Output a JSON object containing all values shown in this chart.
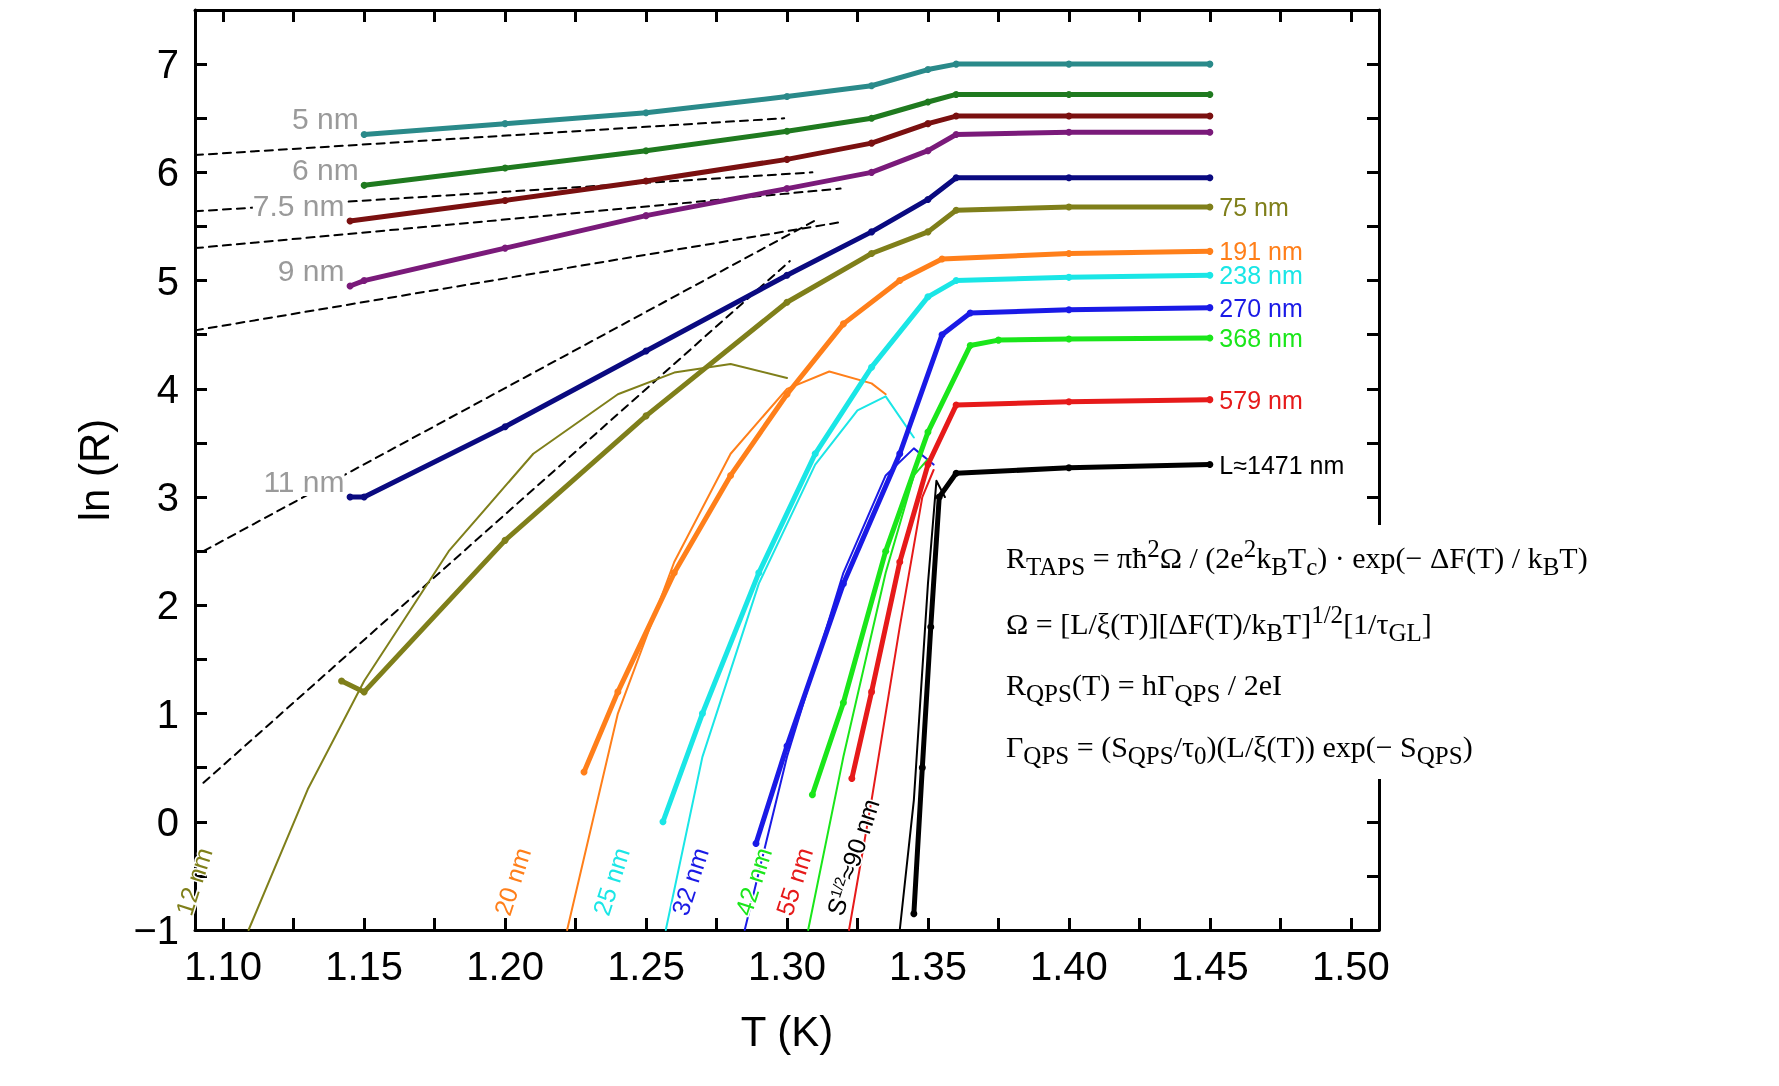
{
  "chart_data": {
    "type": "line",
    "xlabel": "T (K)",
    "ylabel": "ln (R)",
    "xlim": [
      1.09,
      1.51
    ],
    "ylim": [
      -1,
      7.5
    ],
    "xticks": [
      {
        "value": 1.1,
        "label": "1.10"
      },
      {
        "value": 1.125,
        "label": null
      },
      {
        "value": 1.15,
        "label": "1.15"
      },
      {
        "value": 1.175,
        "label": null
      },
      {
        "value": 1.2,
        "label": "1.20"
      },
      {
        "value": 1.225,
        "label": null
      },
      {
        "value": 1.25,
        "label": "1.25"
      },
      {
        "value": 1.275,
        "label": null
      },
      {
        "value": 1.3,
        "label": "1.30"
      },
      {
        "value": 1.325,
        "label": null
      },
      {
        "value": 1.35,
        "label": "1.35"
      },
      {
        "value": 1.375,
        "label": null
      },
      {
        "value": 1.4,
        "label": "1.40"
      },
      {
        "value": 1.425,
        "label": null
      },
      {
        "value": 1.45,
        "label": "1.45"
      },
      {
        "value": 1.475,
        "label": null
      },
      {
        "value": 1.5,
        "label": "1.50"
      }
    ],
    "yticks": [
      {
        "value": -1,
        "label": "−1"
      },
      {
        "value": -0.5,
        "label": null
      },
      0,
      {
        "value": 0.5,
        "label": null
      },
      1,
      {
        "value": 1.5,
        "label": null
      },
      2,
      {
        "value": 2.5,
        "label": null
      },
      3,
      {
        "value": 3.5,
        "label": null
      },
      4,
      {
        "value": 4.5,
        "label": null
      },
      5,
      {
        "value": 5.5,
        "label": null
      },
      6,
      {
        "value": 6.5,
        "label": null
      },
      7
    ],
    "grid": false,
    "legend": false,
    "line_style": "solid",
    "series": [
      {
        "name": "5 nm",
        "color": "#2a8a8a",
        "marker": "circle",
        "x": [
          1.15,
          1.2,
          1.25,
          1.3,
          1.33,
          1.35,
          1.36,
          1.4,
          1.45
        ],
        "values": [
          6.35,
          6.45,
          6.55,
          6.7,
          6.8,
          6.95,
          7.0,
          7.0,
          7.0
        ]
      },
      {
        "name": "6 nm",
        "color": "#1f7a1f",
        "marker": "circle",
        "x": [
          1.15,
          1.2,
          1.25,
          1.3,
          1.33,
          1.35,
          1.36,
          1.4,
          1.45
        ],
        "values": [
          5.88,
          6.04,
          6.2,
          6.38,
          6.5,
          6.65,
          6.72,
          6.72,
          6.72
        ]
      },
      {
        "name": "7.5 nm",
        "color": "#7a1010",
        "marker": "circle",
        "x": [
          1.145,
          1.2,
          1.25,
          1.3,
          1.33,
          1.35,
          1.36,
          1.4,
          1.45
        ],
        "values": [
          5.55,
          5.74,
          5.92,
          6.12,
          6.27,
          6.45,
          6.52,
          6.52,
          6.52
        ]
      },
      {
        "name": "9 nm",
        "color": "#7a1a7a",
        "marker": "circle",
        "x": [
          1.145,
          1.15,
          1.2,
          1.25,
          1.3,
          1.33,
          1.35,
          1.36,
          1.4,
          1.45
        ],
        "values": [
          4.95,
          5.0,
          5.3,
          5.6,
          5.85,
          6.0,
          6.2,
          6.35,
          6.37,
          6.37
        ]
      },
      {
        "name": "11 nm",
        "color": "#0a0a80",
        "marker": "circle",
        "x": [
          1.145,
          1.15,
          1.2,
          1.25,
          1.3,
          1.33,
          1.35,
          1.36,
          1.4,
          1.45
        ],
        "values": [
          3.0,
          3.0,
          3.65,
          4.35,
          5.05,
          5.45,
          5.75,
          5.95,
          5.95,
          5.95
        ]
      },
      {
        "name": "75 nm",
        "color": "#7f7f1a",
        "marker": "circle",
        "x": [
          1.142,
          1.15,
          1.2,
          1.25,
          1.3,
          1.33,
          1.35,
          1.36,
          1.4,
          1.45
        ],
        "values": [
          1.3,
          1.2,
          2.6,
          3.75,
          4.8,
          5.25,
          5.45,
          5.65,
          5.68,
          5.68
        ]
      },
      {
        "name": "191 nm",
        "color": "#ff7f1a",
        "marker": "circle",
        "x": [
          1.228,
          1.24,
          1.26,
          1.28,
          1.3,
          1.32,
          1.34,
          1.355,
          1.4,
          1.45
        ],
        "values": [
          0.46,
          1.2,
          2.3,
          3.2,
          3.95,
          4.6,
          5.0,
          5.2,
          5.25,
          5.27
        ]
      },
      {
        "name": "238 nm",
        "color": "#1ae6e6",
        "marker": "circle",
        "x": [
          1.256,
          1.27,
          1.29,
          1.31,
          1.33,
          1.35,
          1.36,
          1.4,
          1.45
        ],
        "values": [
          0.0,
          1.0,
          2.3,
          3.4,
          4.2,
          4.85,
          5.0,
          5.03,
          5.05
        ]
      },
      {
        "name": "270 nm",
        "color": "#1a1ae6",
        "marker": "circle",
        "x": [
          1.289,
          1.3,
          1.32,
          1.34,
          1.355,
          1.365,
          1.4,
          1.45
        ],
        "values": [
          -0.2,
          0.7,
          2.2,
          3.4,
          4.5,
          4.7,
          4.73,
          4.75
        ]
      },
      {
        "name": "368 nm",
        "color": "#1ae61a",
        "marker": "circle",
        "x": [
          1.309,
          1.32,
          1.335,
          1.35,
          1.365,
          1.375,
          1.4,
          1.45
        ],
        "values": [
          0.25,
          1.1,
          2.5,
          3.6,
          4.4,
          4.45,
          4.46,
          4.47
        ]
      },
      {
        "name": "579 nm",
        "color": "#e61a1a",
        "marker": "circle",
        "x": [
          1.323,
          1.33,
          1.34,
          1.35,
          1.36,
          1.4,
          1.45
        ],
        "values": [
          0.4,
          1.2,
          2.4,
          3.3,
          3.85,
          3.88,
          3.9
        ]
      },
      {
        "name": "L≈1471 nm",
        "color": "#000000",
        "marker": "circle",
        "x": [
          1.345,
          1.348,
          1.351,
          1.354,
          1.36,
          1.4,
          1.45
        ],
        "values": [
          -0.85,
          0.5,
          1.8,
          3.0,
          3.22,
          3.27,
          3.3
        ]
      },
      {
        "name": "12 nm",
        "color": "#7f7f1a",
        "marker": "none",
        "x": [
          1.109,
          1.13,
          1.15,
          1.18,
          1.21,
          1.24,
          1.26,
          1.28,
          1.3
        ],
        "values": [
          -1,
          0.3,
          1.3,
          2.5,
          3.4,
          3.95,
          4.15,
          4.23,
          4.1
        ]
      },
      {
        "name": "20 nm",
        "color": "#ff7f1a",
        "marker": "none",
        "x": [
          1.222,
          1.24,
          1.26,
          1.28,
          1.3,
          1.315,
          1.33,
          1.335
        ],
        "values": [
          -1,
          1.0,
          2.4,
          3.4,
          4.0,
          4.16,
          4.05,
          3.95
        ]
      },
      {
        "name": "25 nm",
        "color": "#1ae6e6",
        "marker": "none",
        "x": [
          1.257,
          1.27,
          1.29,
          1.31,
          1.325,
          1.335,
          1.345
        ],
        "values": [
          -1,
          0.6,
          2.2,
          3.3,
          3.8,
          3.93,
          3.55
        ]
      },
      {
        "name": "32 nm",
        "color": "#1a1ae6",
        "marker": "none",
        "x": [
          1.285,
          1.3,
          1.32,
          1.335,
          1.345,
          1.352
        ],
        "values": [
          -1,
          0.6,
          2.3,
          3.2,
          3.45,
          3.3
        ]
      },
      {
        "name": "42 nm",
        "color": "#1ae61a",
        "marker": "none",
        "x": [
          1.3075,
          1.32,
          1.335,
          1.345,
          1.35
        ],
        "values": [
          -1,
          0.6,
          2.3,
          3.2,
          3.35
        ]
      },
      {
        "name": "55 nm",
        "color": "#e61a1a",
        "marker": "none",
        "x": [
          1.322,
          1.33,
          1.34,
          1.348,
          1.352
        ],
        "values": [
          -1,
          0.2,
          1.8,
          3.0,
          3.25
        ]
      },
      {
        "name": "S$^{1/2}$≈90 nm",
        "color": "#000000",
        "marker": "none",
        "x": [
          1.34,
          1.345,
          1.35,
          1.353,
          1.356
        ],
        "values": [
          -1,
          0.2,
          2.2,
          3.15,
          3.0
        ]
      },
      {
        "color": "#000000",
        "marker": "none",
        "line_style": "dashed",
        "x": [
          1.09,
          1.299
        ],
        "values": [
          6.16,
          6.5
        ]
      },
      {
        "color": "#000000",
        "marker": "none",
        "line_style": "dashed",
        "x": [
          1.09,
          1.309
        ],
        "values": [
          5.64,
          6.0
        ]
      },
      {
        "color": "#000000",
        "marker": "none",
        "line_style": "dashed",
        "x": [
          1.09,
          1.319
        ],
        "values": [
          5.3,
          5.85
        ]
      },
      {
        "color": "#000000",
        "marker": "none",
        "line_style": "dashed",
        "x": [
          1.09,
          1.319
        ],
        "values": [
          4.54,
          5.54
        ]
      },
      {
        "color": "#000000",
        "marker": "none",
        "line_style": "dashed",
        "x": [
          1.093,
          1.311
        ],
        "values": [
          2.5,
          5.57
        ]
      },
      {
        "color": "#000000",
        "marker": "none",
        "line_style": "dashed",
        "x": [
          1.093,
          1.301
        ],
        "values": [
          0.36,
          5.18
        ]
      }
    ],
    "annotations": [
      "R$_{TAPS}$ = πħ$^{2}$Ω / (2e$^{2}$k$_{B}$T$_{c}$) · exp(− ΔF(T) / k$_{B}$T)",
      "Ω = [L/ξ(T)][ΔF(T)/k$_{B}$T]$^{1/2}$[1/τ$_{GL}$]",
      "R$_{QPS}$(T) = hΓ$_{QPS}$ / 2eI",
      "Γ$_{QPS}$ = (S$_{QPS}$/τ$_{0}$)(L/ξ(T)) exp(− S$_{QPS}$)"
    ]
  }
}
